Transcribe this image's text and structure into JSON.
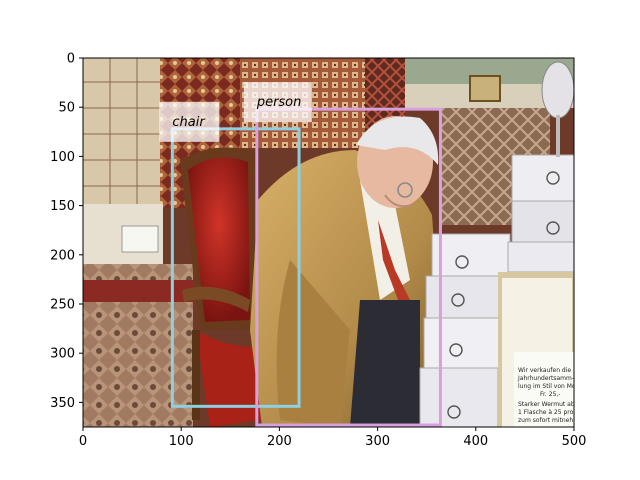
{
  "image": {
    "description_tags": [
      "elderly-man-in-tan-blazer",
      "red-velvet-chair",
      "oriental-rugs",
      "cardboard-boxes",
      "handwritten-sign"
    ]
  },
  "axes": {
    "x_range": [
      0,
      500
    ],
    "y_range": [
      375,
      0
    ],
    "x_ticks": [
      "0",
      "100",
      "200",
      "300",
      "400",
      "500"
    ],
    "y_ticks": [
      "0",
      "50",
      "100",
      "150",
      "200",
      "250",
      "300",
      "350"
    ]
  },
  "detections": [
    {
      "label": "chair",
      "color": "#8ecfe0",
      "bbox_data": [
        91,
        72,
        220,
        354
      ]
    },
    {
      "label": "person",
      "color": "#d7a1e0",
      "bbox_data": [
        177,
        52,
        364,
        373
      ]
    }
  ],
  "sign_text": {
    "line1": "Wir verkaufen die",
    "line2": "Jahrhundertsamm-",
    "line3": "lung im Stil von Mourlin-",
    "line4": "Fr. 25,-",
    "line5": "Starker Wermut ab..",
    "line6": "1 Flasche à 25 pro",
    "line7": "zum sofort mitnehmen"
  },
  "colors": {
    "carpet_red": "#8a2a22",
    "chair_red": "#b8261c",
    "blazer_tan": "#c19a55",
    "box_white": "#ecebf0"
  }
}
